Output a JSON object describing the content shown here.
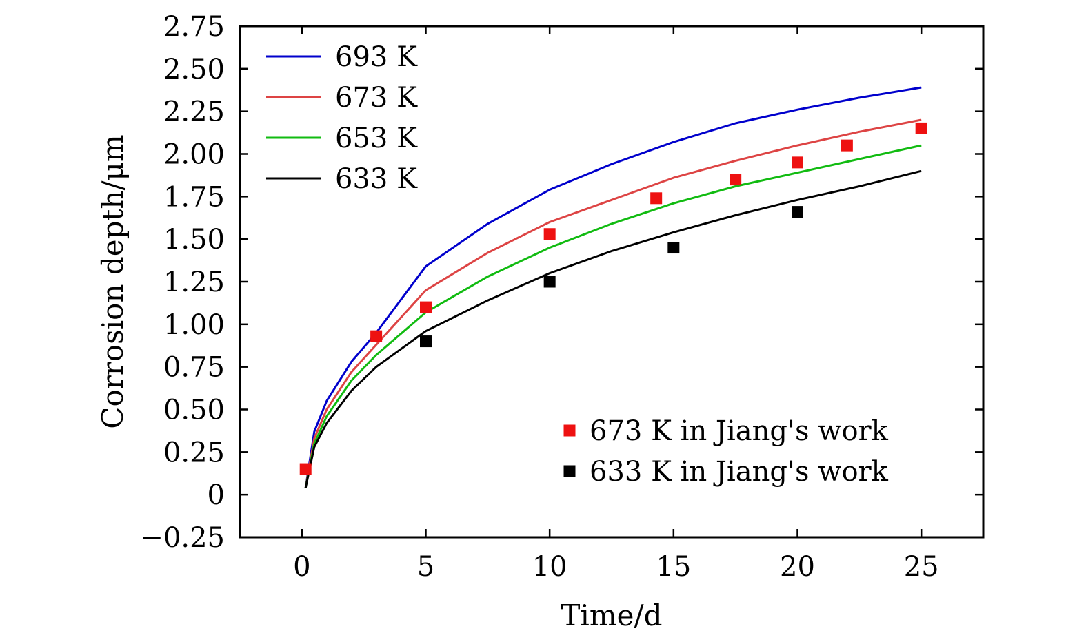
{
  "chart_data": {
    "type": "line",
    "title": "",
    "xlabel": "Time/d",
    "ylabel": "Corrosion depth/μm",
    "xlim": [
      -2.5,
      27.5
    ],
    "ylim": [
      -0.25,
      2.75
    ],
    "x_ticks": [
      0,
      5,
      10,
      15,
      20,
      25
    ],
    "x_tick_labels": [
      "0",
      "5",
      "10",
      "15",
      "20",
      "25"
    ],
    "y_ticks": [
      -0.25,
      0,
      0.25,
      0.5,
      0.75,
      1.0,
      1.25,
      1.5,
      1.75,
      2.0,
      2.25,
      2.5,
      2.75
    ],
    "y_tick_labels": [
      "−0.25",
      "0",
      "0.25",
      "0.50",
      "0.75",
      "1.00",
      "1.25",
      "1.50",
      "1.75",
      "2.00",
      "2.25",
      "2.50",
      "2.75"
    ],
    "series": [
      {
        "name": "693 K",
        "kind": "line",
        "color": "#0000cc",
        "x": [
          0.15,
          0.5,
          1,
          2,
          3,
          5,
          7.5,
          10,
          12.5,
          15,
          17.5,
          20,
          22.5,
          25
        ],
        "y": [
          0.04,
          0.37,
          0.55,
          0.78,
          0.95,
          1.34,
          1.59,
          1.79,
          1.94,
          2.07,
          2.18,
          2.26,
          2.33,
          2.39
        ]
      },
      {
        "name": "673 K",
        "kind": "line",
        "color": "#dd4444",
        "x": [
          0.15,
          0.5,
          1,
          2,
          3,
          5,
          7.5,
          10,
          12.5,
          15,
          17.5,
          20,
          22.5,
          25
        ],
        "y": [
          0.04,
          0.33,
          0.5,
          0.72,
          0.88,
          1.2,
          1.42,
          1.6,
          1.73,
          1.86,
          1.96,
          2.05,
          2.13,
          2.2
        ]
      },
      {
        "name": "653 K",
        "kind": "line",
        "color": "#11bb11",
        "x": [
          0.15,
          0.5,
          1,
          2,
          3,
          5,
          7.5,
          10,
          12.5,
          15,
          17.5,
          20,
          22.5,
          25
        ],
        "y": [
          0.04,
          0.3,
          0.46,
          0.67,
          0.82,
          1.07,
          1.28,
          1.45,
          1.59,
          1.71,
          1.81,
          1.89,
          1.97,
          2.05
        ]
      },
      {
        "name": "633 K",
        "kind": "line",
        "color": "#000000",
        "x": [
          0.15,
          0.5,
          1,
          2,
          3,
          5,
          7.5,
          10,
          12.5,
          15,
          17.5,
          20,
          22.5,
          25
        ],
        "y": [
          0.04,
          0.28,
          0.42,
          0.61,
          0.75,
          0.96,
          1.14,
          1.3,
          1.43,
          1.54,
          1.64,
          1.73,
          1.81,
          1.9
        ]
      },
      {
        "name": "673 K in Jiang's work",
        "kind": "scatter",
        "color": "#ee1111",
        "x": [
          0.15,
          3,
          5,
          10,
          14.3,
          17.5,
          20,
          22,
          25
        ],
        "y": [
          0.15,
          0.93,
          1.1,
          1.53,
          1.74,
          1.85,
          1.95,
          2.05,
          2.15
        ]
      },
      {
        "name": "633 K in Jiang's work",
        "kind": "scatter",
        "color": "#000000",
        "x": [
          5,
          10,
          15,
          20
        ],
        "y": [
          0.9,
          1.25,
          1.45,
          1.66
        ]
      }
    ],
    "legend_lines_position": "top-left",
    "legend_points_position": "bottom-right",
    "grid": false
  }
}
